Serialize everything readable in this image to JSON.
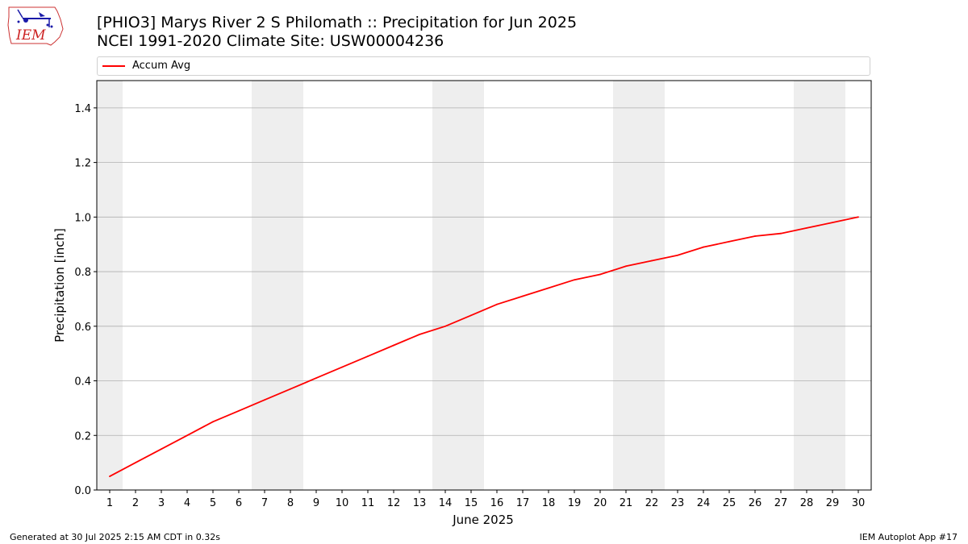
{
  "title": {
    "line1": "[PHIO3] Marys River 2 S Philomath :: Precipitation for Jun 2025",
    "line2": "NCEI 1991-2020 Climate Site: USW00004236"
  },
  "logo": {
    "text": "IEM",
    "icon": "iem-iowa-logo"
  },
  "footer": {
    "left": "Generated at 30 Jul 2025 2:15 AM CDT in 0.32s",
    "right": "IEM Autoplot App #17"
  },
  "colors": {
    "series": "#ff0000",
    "weekend_band": "#eeeeee",
    "grid": "#b0b0b0"
  },
  "chart_data": {
    "type": "line",
    "xlabel": "June 2025",
    "ylabel": "Precipitation [inch]",
    "xlim": [
      0.5,
      30.5
    ],
    "ylim": [
      0.0,
      1.5
    ],
    "x_ticks": [
      1,
      2,
      3,
      4,
      5,
      6,
      7,
      8,
      9,
      10,
      11,
      12,
      13,
      14,
      15,
      16,
      17,
      18,
      19,
      20,
      21,
      22,
      23,
      24,
      25,
      26,
      27,
      28,
      29,
      30
    ],
    "y_ticks": [
      0.0,
      0.2,
      0.4,
      0.6,
      0.8,
      1.0,
      1.2,
      1.4
    ],
    "grid": "horizontal",
    "legend": {
      "placement": "top",
      "entries": [
        "Accum Avg"
      ]
    },
    "weekend_days": [
      1,
      7,
      8,
      14,
      15,
      21,
      22,
      28,
      29
    ],
    "series": [
      {
        "name": "Accum Avg",
        "color": "#ff0000",
        "x": [
          1,
          2,
          3,
          4,
          5,
          6,
          7,
          8,
          9,
          10,
          11,
          12,
          13,
          14,
          15,
          16,
          17,
          18,
          19,
          20,
          21,
          22,
          23,
          24,
          25,
          26,
          27,
          28,
          29,
          30
        ],
        "values": [
          0.05,
          0.1,
          0.15,
          0.2,
          0.25,
          0.29,
          0.33,
          0.37,
          0.41,
          0.45,
          0.49,
          0.53,
          0.57,
          0.6,
          0.64,
          0.68,
          0.71,
          0.74,
          0.77,
          0.79,
          0.82,
          0.84,
          0.86,
          0.89,
          0.91,
          0.93,
          0.94,
          0.96,
          0.98,
          1.0
        ]
      }
    ]
  }
}
